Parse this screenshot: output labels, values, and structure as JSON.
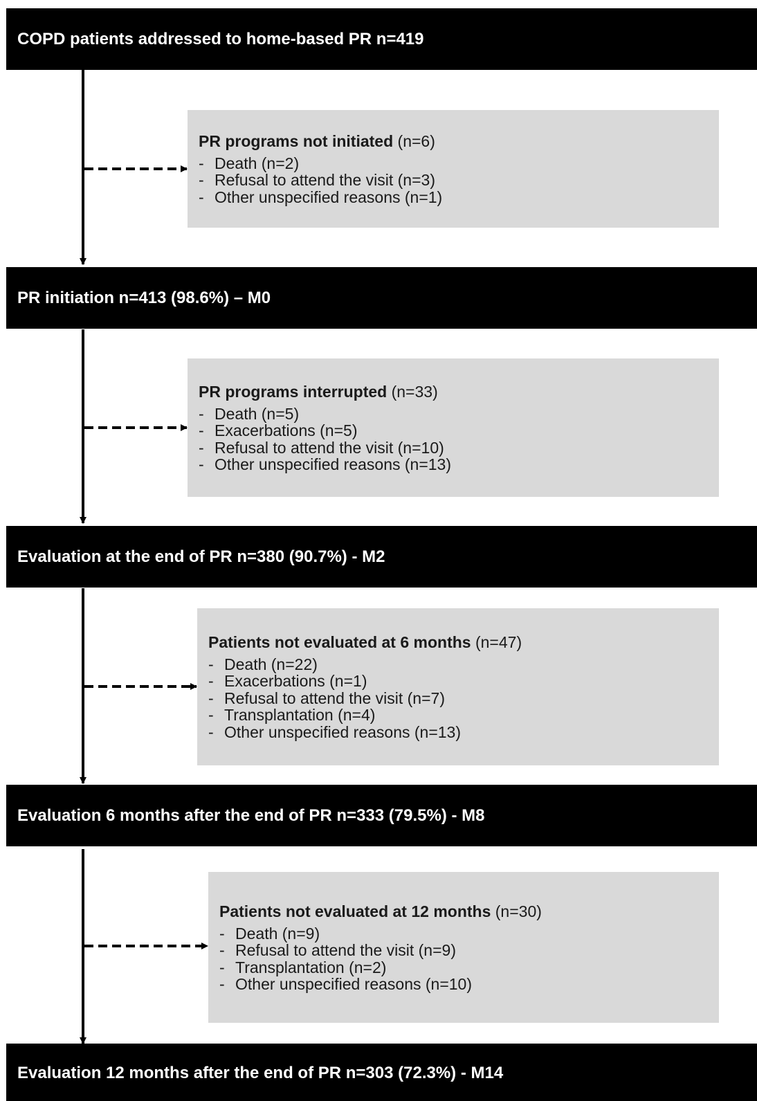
{
  "stages": [
    {
      "label": "COPD patients addressed to home-based PR n=419"
    },
    {
      "label": "PR initiation n=413 (98.6%) – M0"
    },
    {
      "label": "Evaluation at the end of PR n=380 (90.7%) - M2"
    },
    {
      "label": "Evaluation 6 months after the end of PR n=333 (79.5%) - M8"
    },
    {
      "label": "Evaluation 12 months after the end of PR n=303 (72.3%) - M14"
    }
  ],
  "exclusions": [
    {
      "title": "PR programs not initiated",
      "count": "(n=6)",
      "items": [
        "Death (n=2)",
        "Refusal to attend the visit (n=3)",
        "Other unspecified reasons (n=1)"
      ]
    },
    {
      "title": "PR programs interrupted",
      "count": "(n=33)",
      "items": [
        "Death (n=5)",
        "Exacerbations (n=5)",
        "Refusal to attend the visit (n=10)",
        "Other unspecified reasons (n=13)"
      ]
    },
    {
      "title": "Patients not evaluated at 6 months",
      "count": "(n=47)",
      "items": [
        "Death (n=22)",
        "Exacerbations (n=1)",
        "Refusal to attend the visit (n=7)",
        "Transplantation (n=4)",
        "Other unspecified reasons (n=13)"
      ]
    },
    {
      "title": "Patients not evaluated at 12 months",
      "count": "(n=30)",
      "items": [
        "Death (n=9)",
        "Refusal to attend the visit (n=9)",
        "Transplantation (n=2)",
        "Other unspecified reasons (n=10)"
      ]
    }
  ],
  "bullet": "-"
}
